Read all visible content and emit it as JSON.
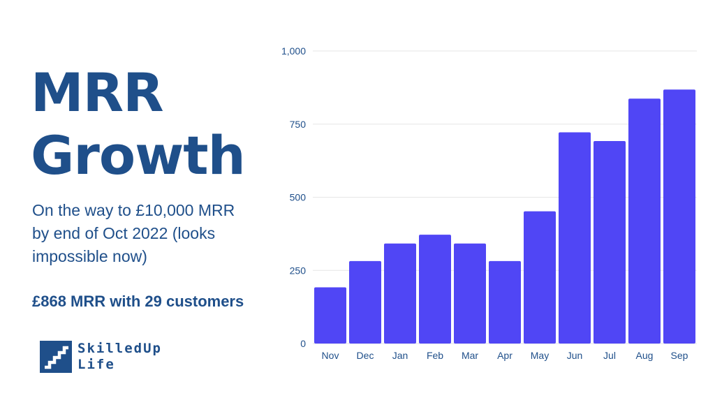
{
  "header": {
    "title_line1": "MRR",
    "title_line2": "Growth",
    "subtitle": "On the way to £10,000 MRR by end of Oct 2022 (looks impossible now)",
    "summary": "£868 MRR with 29 customers"
  },
  "brand": {
    "line1": "SkilledUp",
    "line2": "Life",
    "logo_icon": "stairs-icon",
    "color": "#1f4f8a"
  },
  "colors": {
    "bar": "#5046f5",
    "text": "#1f4f8a",
    "grid": "#e6e6e6"
  },
  "chart_data": {
    "type": "bar",
    "categories": [
      "Nov",
      "Dec",
      "Jan",
      "Feb",
      "Mar",
      "Apr",
      "May",
      "Jun",
      "Jul",
      "Aug",
      "Sep"
    ],
    "values": [
      192,
      282,
      342,
      372,
      342,
      282,
      452,
      722,
      692,
      837,
      868
    ],
    "ylim": [
      0,
      1000
    ],
    "yticks": [
      0,
      250,
      500,
      750,
      1000
    ],
    "ytick_labels": [
      "0",
      "250",
      "500",
      "750",
      "1,000"
    ],
    "grid": true
  }
}
